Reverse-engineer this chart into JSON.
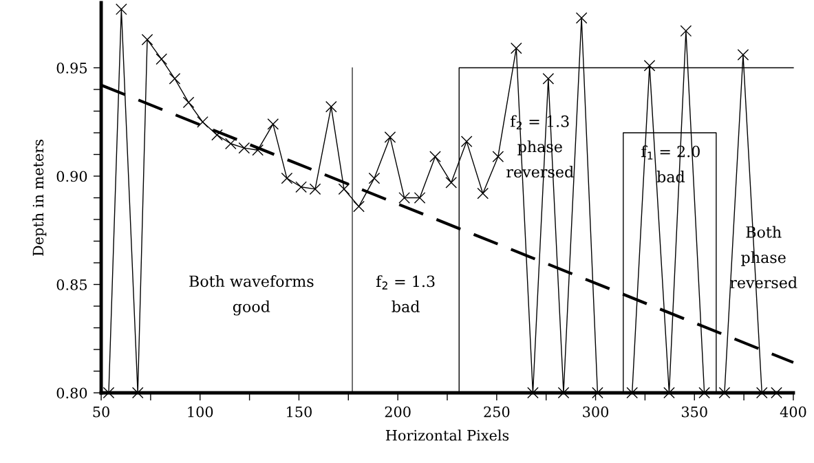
{
  "chart_data": {
    "type": "line",
    "xlabel": "Horizontal Pixels",
    "ylabel": "Depth in meters",
    "xlim": [
      50,
      400
    ],
    "ylim": [
      0.8,
      0.98
    ],
    "xticks": [
      50,
      {
        "value": 75,
        "label": null
      },
      100,
      {
        "value": 125,
        "label": null
      },
      150,
      {
        "value": 175,
        "label": null
      },
      200,
      {
        "value": 225,
        "label": null
      },
      250,
      {
        "value": 275,
        "label": null
      },
      300,
      {
        "value": 325,
        "label": null
      },
      350,
      {
        "value": 375,
        "label": null
      },
      400
    ],
    "yticks": [
      {
        "value": 0.8,
        "label": "0.80"
      },
      {
        "value": 0.81,
        "label": null
      },
      {
        "value": 0.82,
        "label": null
      },
      {
        "value": 0.83,
        "label": null
      },
      {
        "value": 0.84,
        "label": null
      },
      0.85,
      {
        "value": 0.86,
        "label": null
      },
      {
        "value": 0.87,
        "label": null
      },
      {
        "value": 0.88,
        "label": null
      },
      {
        "value": 0.89,
        "label": null
      },
      {
        "value": 0.9,
        "label": "0.90"
      },
      {
        "value": 0.91,
        "label": null
      },
      {
        "value": 0.92,
        "label": null
      },
      {
        "value": 0.93,
        "label": null
      },
      {
        "value": 0.94,
        "label": null
      },
      0.95
    ],
    "grid": false,
    "legend": false,
    "series": [
      {
        "color": "#000000",
        "marker": "cross",
        "line_style": "solid",
        "x": [
          53.8,
          60.2,
          68.5,
          73.3,
          80.5,
          87.2,
          94.2,
          101.3,
          108.6,
          115.5,
          122.3,
          129.2,
          136.9,
          143.9,
          151.1,
          158.2,
          166.3,
          172.8,
          180.3,
          188.1,
          196.1,
          203.3,
          211.1,
          218.9,
          227.0,
          234.8,
          243.0,
          250.7,
          259.9,
          268.3,
          276.1,
          283.8,
          292.9,
          301.0,
          318.5,
          327.3,
          337.2,
          345.7,
          355.0,
          365.2,
          374.6,
          384.1,
          391.5
        ],
        "values": [
          0.8,
          0.977,
          0.8,
          0.963,
          0.954,
          0.945,
          0.934,
          0.925,
          0.919,
          0.915,
          0.913,
          0.912,
          0.924,
          0.899,
          0.895,
          0.894,
          0.932,
          0.894,
          0.886,
          0.899,
          0.918,
          0.89,
          0.89,
          0.909,
          0.897,
          0.916,
          0.892,
          0.909,
          0.959,
          0.8,
          0.945,
          0.8,
          0.973,
          0.8,
          0.8,
          0.951,
          0.8,
          0.967,
          0.8,
          0.8,
          0.956,
          0.8,
          0.8
        ]
      },
      {
        "color": "#000000",
        "marker": "none",
        "line_style": "dashed",
        "x": [
          50,
          400
        ],
        "values": [
          0.942,
          0.814
        ]
      },
      {
        "color": "#000000",
        "marker": "none",
        "line_style": "solid",
        "x": [
          231,
          231,
          400
        ],
        "values": [
          0.8,
          0.95,
          0.95
        ]
      },
      {
        "color": "#000000",
        "marker": "none",
        "line_style": "solid",
        "x": [
          314,
          314,
          361,
          361
        ],
        "values": [
          0.8,
          0.92,
          0.92,
          0.8
        ]
      }
    ],
    "ref_lines": [
      {
        "axis": "x",
        "value": 177,
        "color": "#000000"
      }
    ],
    "annotations": [
      "Both waveforms\ngood",
      "f$_{2}$ = 1.3\nbad",
      "f$_{2}$ = 1.3\nphase\nreversed",
      "f$_{1}$ = 2.0\nbad",
      "Both\nphase\nreversed"
    ]
  }
}
